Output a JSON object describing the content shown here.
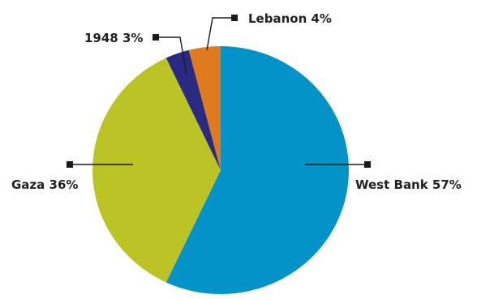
{
  "chart_data": {
    "type": "pie",
    "title": "",
    "categories": [
      "West Bank",
      "Gaza",
      "1948",
      "Lebanon"
    ],
    "values": [
      57,
      36,
      3,
      4
    ],
    "colors": [
      "#0493c9",
      "#bcc425",
      "#2a2a82",
      "#e07a1e"
    ],
    "labels": [
      "West Bank 57%",
      "Gaza 36%",
      "1948 3%",
      "Lebanon 4%"
    ],
    "legend": "none",
    "start_angle_deg": 0,
    "direction": "clockwise"
  }
}
